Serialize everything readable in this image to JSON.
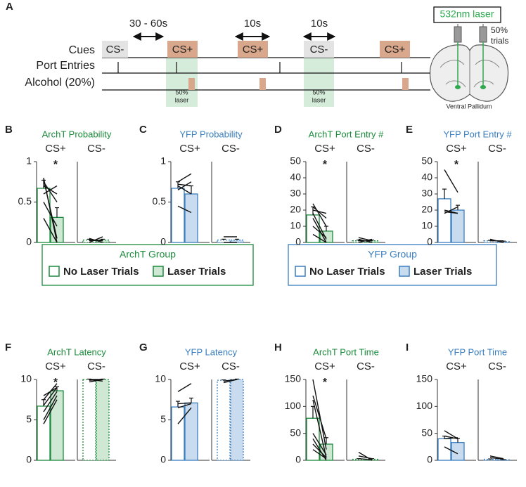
{
  "schematic": {
    "panel": "A",
    "rows": [
      "Cues",
      "Port Entries",
      "Alcohol (20%)"
    ],
    "cues": [
      "CS-",
      "CS+",
      "CS+",
      "CS-",
      "CS+"
    ],
    "intervals": [
      "30 - 60s",
      "10s",
      "10s"
    ],
    "laser_notes": [
      [
        "50%",
        "laser"
      ],
      [
        "50%",
        "laser"
      ]
    ],
    "laser_label": "532nm laser",
    "trials_note": [
      "50%",
      "trials"
    ],
    "region": "Ventral Pallidum"
  },
  "legends": [
    {
      "title": "ArchT Group",
      "color": "#1b8a3c",
      "fills": [
        "#ffffff",
        "#cfe8d4"
      ],
      "entries": [
        "No Laser Trials",
        "Laser Trials"
      ]
    },
    {
      "title": "YFP Group",
      "color": "#3a7ebf",
      "fills": [
        "#ffffff",
        "#c9dcef"
      ],
      "entries": [
        "No Laser Trials",
        "Laser Trials"
      ]
    }
  ],
  "chart_data": [
    {
      "type": "bar",
      "panel": "B",
      "title": "ArchT Probability",
      "title_color": "#1b8a3c",
      "categories": [
        "CS+",
        "CS-"
      ],
      "ylim": [
        0,
        1
      ],
      "yticks": [
        0,
        0.5,
        1
      ],
      "significance": [
        "*",
        null
      ],
      "series": [
        {
          "color": "#1b8a3c",
          "fill": "#ffffff",
          "values": [
            0.67,
            0.03
          ],
          "errors": [
            0.1,
            0.01
          ]
        },
        {
          "color": "#1b8a3c",
          "fill": "#cfe8d4",
          "values": [
            0.31,
            0.03
          ],
          "errors": [
            0.12,
            0.01
          ]
        }
      ],
      "subjects": [
        [
          [
            0.8,
            0.0
          ],
          [
            0.78,
            0.05
          ],
          [
            0.75,
            0.5
          ],
          [
            0.7,
            0.6
          ],
          [
            0.6,
            0.7
          ],
          [
            0.5,
            0.2
          ],
          [
            0.3,
            0.0
          ]
        ],
        [
          [
            0.0,
            0.07
          ],
          [
            0.02,
            0.03
          ],
          [
            0.05,
            0.0
          ],
          [
            0.03,
            0.02
          ]
        ]
      ]
    },
    {
      "type": "bar",
      "panel": "C",
      "title": "YFP Probability",
      "title_color": "#3a7ebf",
      "categories": [
        "CS+",
        "CS-"
      ],
      "ylim": [
        0,
        1
      ],
      "yticks": [
        0,
        0.5,
        1
      ],
      "significance": [
        null,
        null
      ],
      "series": [
        {
          "color": "#3a7ebf",
          "fill": "#ffffff",
          "values": [
            0.67,
            0.03
          ],
          "errors": [
            0.08,
            0.01
          ]
        },
        {
          "color": "#3a7ebf",
          "fill": "#c9dcef",
          "values": [
            0.6,
            0.03
          ],
          "errors": [
            0.1,
            0.01
          ]
        }
      ],
      "subjects": [
        [
          [
            0.75,
            0.85
          ],
          [
            0.72,
            0.7
          ],
          [
            0.7,
            0.6
          ],
          [
            0.65,
            0.75
          ],
          [
            0.45,
            0.37
          ]
        ],
        [
          [
            0.07,
            0.07
          ],
          [
            0.0,
            0.0
          ]
        ]
      ]
    },
    {
      "type": "bar",
      "panel": "D",
      "title": "ArchT Port Entry #",
      "title_color": "#1b8a3c",
      "categories": [
        "CS+",
        "CS-"
      ],
      "ylim": [
        0,
        50
      ],
      "yticks": [
        0,
        10,
        20,
        30,
        40,
        50
      ],
      "significance": [
        "*",
        null
      ],
      "series": [
        {
          "color": "#1b8a3c",
          "fill": "#ffffff",
          "values": [
            17,
            1
          ],
          "errors": [
            5,
            0.5
          ]
        },
        {
          "color": "#1b8a3c",
          "fill": "#cfe8d4",
          "values": [
            7,
            1
          ],
          "errors": [
            3,
            0.5
          ]
        }
      ],
      "subjects": [
        [
          [
            24,
            10
          ],
          [
            22,
            15
          ],
          [
            20,
            18
          ],
          [
            18,
            2
          ],
          [
            15,
            0
          ],
          [
            10,
            3
          ],
          [
            5,
            0
          ]
        ],
        [
          [
            3,
            1
          ],
          [
            2,
            0
          ],
          [
            0,
            2
          ],
          [
            1,
            1
          ]
        ]
      ]
    },
    {
      "type": "bar",
      "panel": "E",
      "title": "YFP Port Entry #",
      "title_color": "#3a7ebf",
      "categories": [
        "CS+",
        "CS-"
      ],
      "ylim": [
        0,
        50
      ],
      "yticks": [
        0,
        10,
        20,
        30,
        40,
        50
      ],
      "significance": [
        "*",
        null
      ],
      "series": [
        {
          "color": "#3a7ebf",
          "fill": "#ffffff",
          "values": [
            27,
            1
          ],
          "errors": [
            6,
            0.3
          ]
        },
        {
          "color": "#3a7ebf",
          "fill": "#c9dcef",
          "values": [
            20,
            0.5
          ],
          "errors": [
            3,
            0.3
          ]
        }
      ],
      "subjects": [
        [
          [
            45,
            31
          ],
          [
            20,
            18
          ],
          [
            19,
            18
          ],
          [
            18,
            22
          ]
        ],
        [
          [
            2,
            0
          ],
          [
            1,
            1
          ]
        ]
      ]
    },
    {
      "type": "bar",
      "panel": "F",
      "title": "ArchT Latency",
      "title_color": "#1b8a3c",
      "categories": [
        "CS+",
        "CS-"
      ],
      "ylim": [
        0,
        10
      ],
      "yticks": [
        0,
        5,
        10
      ],
      "significance": [
        "*",
        null
      ],
      "series": [
        {
          "color": "#1b8a3c",
          "fill": "#ffffff",
          "values": [
            6.7,
            10
          ],
          "errors": [
            0.8,
            0.05
          ]
        },
        {
          "color": "#1b8a3c",
          "fill": "#cfe8d4",
          "values": [
            8.6,
            10
          ],
          "errors": [
            0.5,
            0.05
          ]
        }
      ],
      "subjects": [
        [
          [
            8,
            9
          ],
          [
            7.5,
            9.5
          ],
          [
            6.8,
            9
          ],
          [
            6,
            8.5
          ],
          [
            5,
            8
          ],
          [
            4.5,
            7.5
          ]
        ],
        [
          [
            9.7,
            10
          ],
          [
            10,
            9.8
          ],
          [
            9.9,
            10
          ],
          [
            10,
            10
          ]
        ]
      ]
    },
    {
      "type": "bar",
      "panel": "G",
      "title": "YFP Latency",
      "title_color": "#3a7ebf",
      "categories": [
        "CS+",
        "CS-"
      ],
      "ylim": [
        0,
        10
      ],
      "yticks": [
        0,
        5,
        10
      ],
      "significance": [
        null,
        null
      ],
      "series": [
        {
          "color": "#3a7ebf",
          "fill": "#ffffff",
          "values": [
            6.6,
            9.9
          ],
          "errors": [
            0.7,
            0.05
          ]
        },
        {
          "color": "#3a7ebf",
          "fill": "#c9dcef",
          "values": [
            7.1,
            10
          ],
          "errors": [
            0.6,
            0.05
          ]
        }
      ],
      "subjects": [
        [
          [
            8.5,
            9.5
          ],
          [
            7,
            7.1
          ],
          [
            6.5,
            7
          ],
          [
            4.5,
            6.5
          ]
        ],
        [
          [
            9.6,
            10
          ],
          [
            9.8,
            10
          ]
        ]
      ]
    },
    {
      "type": "bar",
      "panel": "H",
      "title": "ArchT Port Time",
      "title_color": "#1b8a3c",
      "categories": [
        "CS+",
        "CS-"
      ],
      "ylim": [
        0,
        150
      ],
      "yticks": [
        0,
        50,
        100,
        150
      ],
      "significance": [
        "*",
        null
      ],
      "series": [
        {
          "color": "#1b8a3c",
          "fill": "#ffffff",
          "values": [
            78,
            2
          ],
          "errors": [
            22,
            1
          ]
        },
        {
          "color": "#1b8a3c",
          "fill": "#cfe8d4",
          "values": [
            30,
            2
          ],
          "errors": [
            12,
            1
          ]
        }
      ],
      "subjects": [
        [
          [
            150,
            20
          ],
          [
            120,
            40
          ],
          [
            112,
            5
          ],
          [
            50,
            10
          ],
          [
            40,
            0
          ],
          [
            30,
            5
          ],
          [
            20,
            3
          ]
        ],
        [
          [
            15,
            0
          ],
          [
            8,
            3
          ],
          [
            3,
            1
          ]
        ]
      ]
    },
    {
      "type": "bar",
      "panel": "I",
      "title": "YFP Port Time",
      "title_color": "#3a7ebf",
      "categories": [
        "CS+",
        "CS-"
      ],
      "ylim": [
        0,
        150
      ],
      "yticks": [
        0,
        50,
        100,
        150
      ],
      "significance": [
        null,
        null
      ],
      "series": [
        {
          "color": "#3a7ebf",
          "fill": "#ffffff",
          "values": [
            40,
            2
          ],
          "errors": [
            5,
            0.5
          ]
        },
        {
          "color": "#3a7ebf",
          "fill": "#c9dcef",
          "values": [
            33,
            1
          ],
          "errors": [
            8,
            0.5
          ]
        }
      ],
      "subjects": [
        [
          [
            55,
            40
          ],
          [
            45,
            40
          ],
          [
            40,
            42
          ],
          [
            25,
            12
          ]
        ],
        [
          [
            8,
            3
          ],
          [
            5,
            2
          ]
        ]
      ]
    }
  ]
}
